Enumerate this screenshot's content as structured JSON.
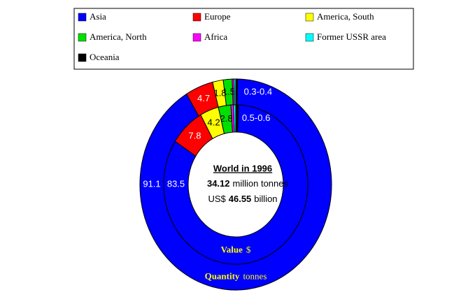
{
  "chart_data": {
    "type": "donut",
    "legend": {
      "position": "top"
    },
    "categories": [
      "Asia",
      "Europe",
      "America, South",
      "America, North",
      "Africa",
      "Former USSR area",
      "Oceania"
    ],
    "colors": [
      "#0000ff",
      "#ff0000",
      "#ffff00",
      "#00e000",
      "#ff00ff",
      "#00ffff",
      "#000000"
    ],
    "series": [
      {
        "name": "Quantity",
        "unit": "tonnes",
        "values": [
          91.1,
          4.7,
          1.8,
          1.5,
          0.3,
          0.3,
          0.3
        ],
        "range_label": "0.3-0.4"
      },
      {
        "name": "Value",
        "unit": "$",
        "values": [
          83.5,
          7.8,
          4.2,
          2.8,
          0.6,
          0.5,
          0.6
        ],
        "range_label": "0.5-0.6"
      }
    ],
    "center": {
      "title": "World in 1996",
      "quantity": {
        "bold": "34.12",
        "text": "million tonnes"
      },
      "value": {
        "pre": "US$",
        "bold": "46.55",
        "text": "billion"
      }
    }
  }
}
